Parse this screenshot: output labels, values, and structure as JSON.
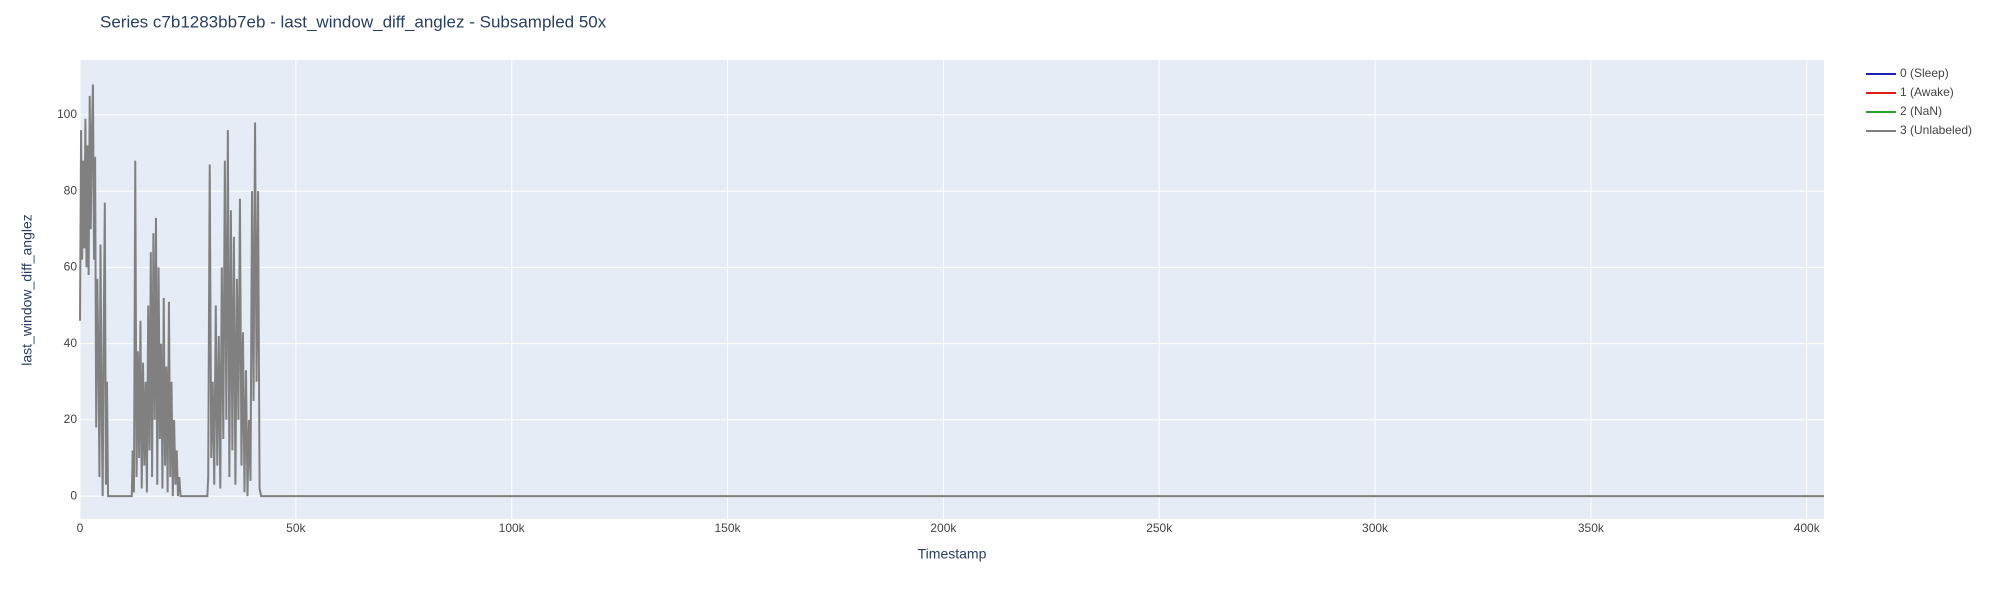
{
  "chart_data": {
    "type": "line",
    "title": "Series c7b1283bb7eb - last_window_diff_anglez - Subsampled 50x",
    "x_label": "Timestamp",
    "y_label": "last_window_diff_anglez",
    "xlim": [
      0,
      404000
    ],
    "ylim": [
      -6,
      114.4
    ],
    "xticks": [
      0,
      {
        "value": 50000,
        "label": "50k"
      },
      {
        "value": 100000,
        "label": "100k"
      },
      {
        "value": 150000,
        "label": "150k"
      },
      {
        "value": 200000,
        "label": "200k"
      },
      {
        "value": 250000,
        "label": "250k"
      },
      {
        "value": 300000,
        "label": "300k"
      },
      {
        "value": 350000,
        "label": "350k"
      },
      {
        "value": 400000,
        "label": "400k"
      }
    ],
    "yticks": [
      0,
      20,
      40,
      60,
      80,
      100
    ],
    "grid": true,
    "legend": "right",
    "series": [
      {
        "name": "0 (Sleep)",
        "color": "#1f1fb4",
        "x": [],
        "values": []
      },
      {
        "name": "1 (Awake)",
        "color": "#e31a1c",
        "x": [],
        "values": []
      },
      {
        "name": "2 (NaN)",
        "color": "#2ca02c",
        "x": [],
        "values": []
      },
      {
        "name": "3 (Unlabeled)",
        "color": "#808080",
        "x": [
          0,
          250,
          500,
          750,
          1000,
          1250,
          1500,
          1750,
          2000,
          2250,
          2500,
          2750,
          3000,
          3250,
          3500,
          3750,
          4000,
          4250,
          4500,
          4750,
          5000,
          5250,
          5500,
          5750,
          6000,
          6250,
          6500,
          7000,
          12000,
          12200,
          12500,
          12800,
          13100,
          13400,
          13700,
          14000,
          14300,
          14600,
          14900,
          15200,
          15500,
          15800,
          16100,
          16400,
          16700,
          17000,
          17300,
          17600,
          17900,
          18200,
          18500,
          18800,
          19100,
          19400,
          19700,
          20000,
          20300,
          20600,
          20900,
          21200,
          21500,
          21800,
          22100,
          22400,
          22700,
          23000,
          23300,
          24000,
          29500,
          29700,
          30050,
          30400,
          30750,
          31100,
          31450,
          31800,
          32150,
          32500,
          32850,
          33200,
          33550,
          33900,
          34250,
          34600,
          34950,
          35300,
          35650,
          36000,
          36350,
          36700,
          37050,
          37400,
          37750,
          38100,
          38450,
          38800,
          39150,
          39500,
          39850,
          40200,
          40550,
          40900,
          41250,
          41600,
          41950,
          404000
        ],
        "values": [
          46,
          96,
          62,
          88,
          65,
          99,
          60,
          92,
          58,
          105,
          70,
          95,
          108,
          62,
          89,
          18,
          57,
          38,
          5,
          66,
          25,
          0,
          44,
          77,
          3,
          30,
          0,
          0,
          0,
          12,
          1,
          88,
          5,
          38,
          10,
          46,
          2,
          35,
          8,
          30,
          1,
          50,
          12,
          64,
          5,
          69,
          20,
          73,
          3,
          60,
          15,
          40,
          2,
          52,
          8,
          34,
          1,
          51,
          5,
          30,
          0,
          20,
          3,
          12,
          0,
          5,
          0,
          0,
          0,
          5,
          87,
          10,
          30,
          3,
          50,
          8,
          42,
          2,
          60,
          15,
          88,
          20,
          96,
          5,
          75,
          12,
          68,
          3,
          57,
          20,
          78,
          8,
          43,
          1,
          33,
          0,
          20,
          4,
          80,
          25,
          98,
          30,
          80,
          2,
          0,
          0
        ]
      }
    ]
  }
}
